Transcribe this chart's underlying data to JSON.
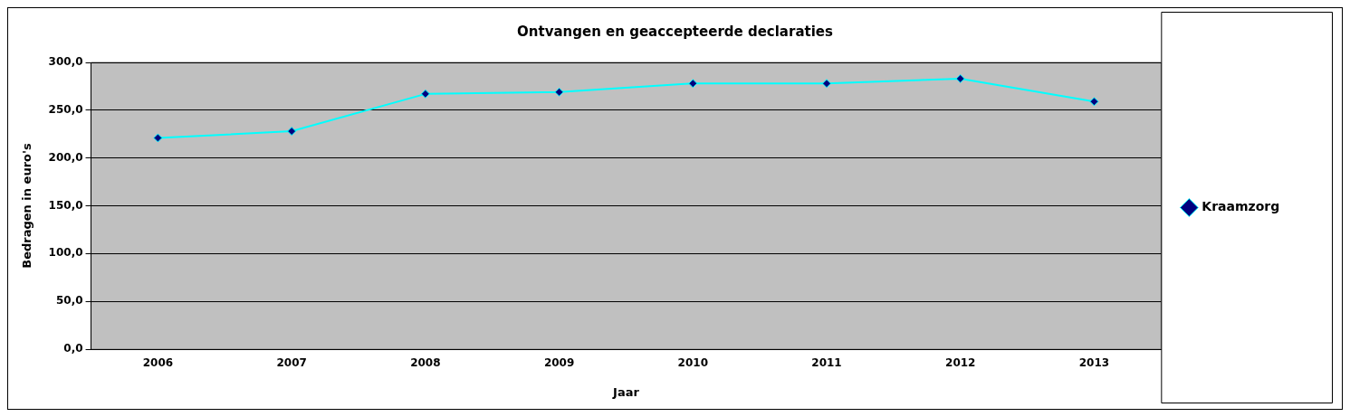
{
  "chart_data": {
    "type": "line",
    "title": "Ontvangen en geaccepteerde declaraties",
    "xlabel": "Jaar",
    "ylabel": "Bedragen in euro's",
    "categories": [
      "2006",
      "2007",
      "2008",
      "2009",
      "2010",
      "2011",
      "2012",
      "2013"
    ],
    "series": [
      {
        "name": "Kraamzorg",
        "color": "#00ffff",
        "values": [
          221,
          228,
          267,
          269,
          278,
          278,
          283,
          259
        ]
      }
    ],
    "ylim": [
      0,
      300
    ],
    "yticks": [
      {
        "value": 0,
        "label": "0,0"
      },
      {
        "value": 50,
        "label": "50,0"
      },
      {
        "value": 100,
        "label": "100,0"
      },
      {
        "value": 150,
        "label": "150,0"
      },
      {
        "value": 200,
        "label": "200,0"
      },
      {
        "value": 250,
        "label": "250,0"
      },
      {
        "value": 300,
        "label": "300,0"
      }
    ],
    "grid": "y",
    "legend": "right",
    "marker": "diamond",
    "line_style": "solid"
  }
}
